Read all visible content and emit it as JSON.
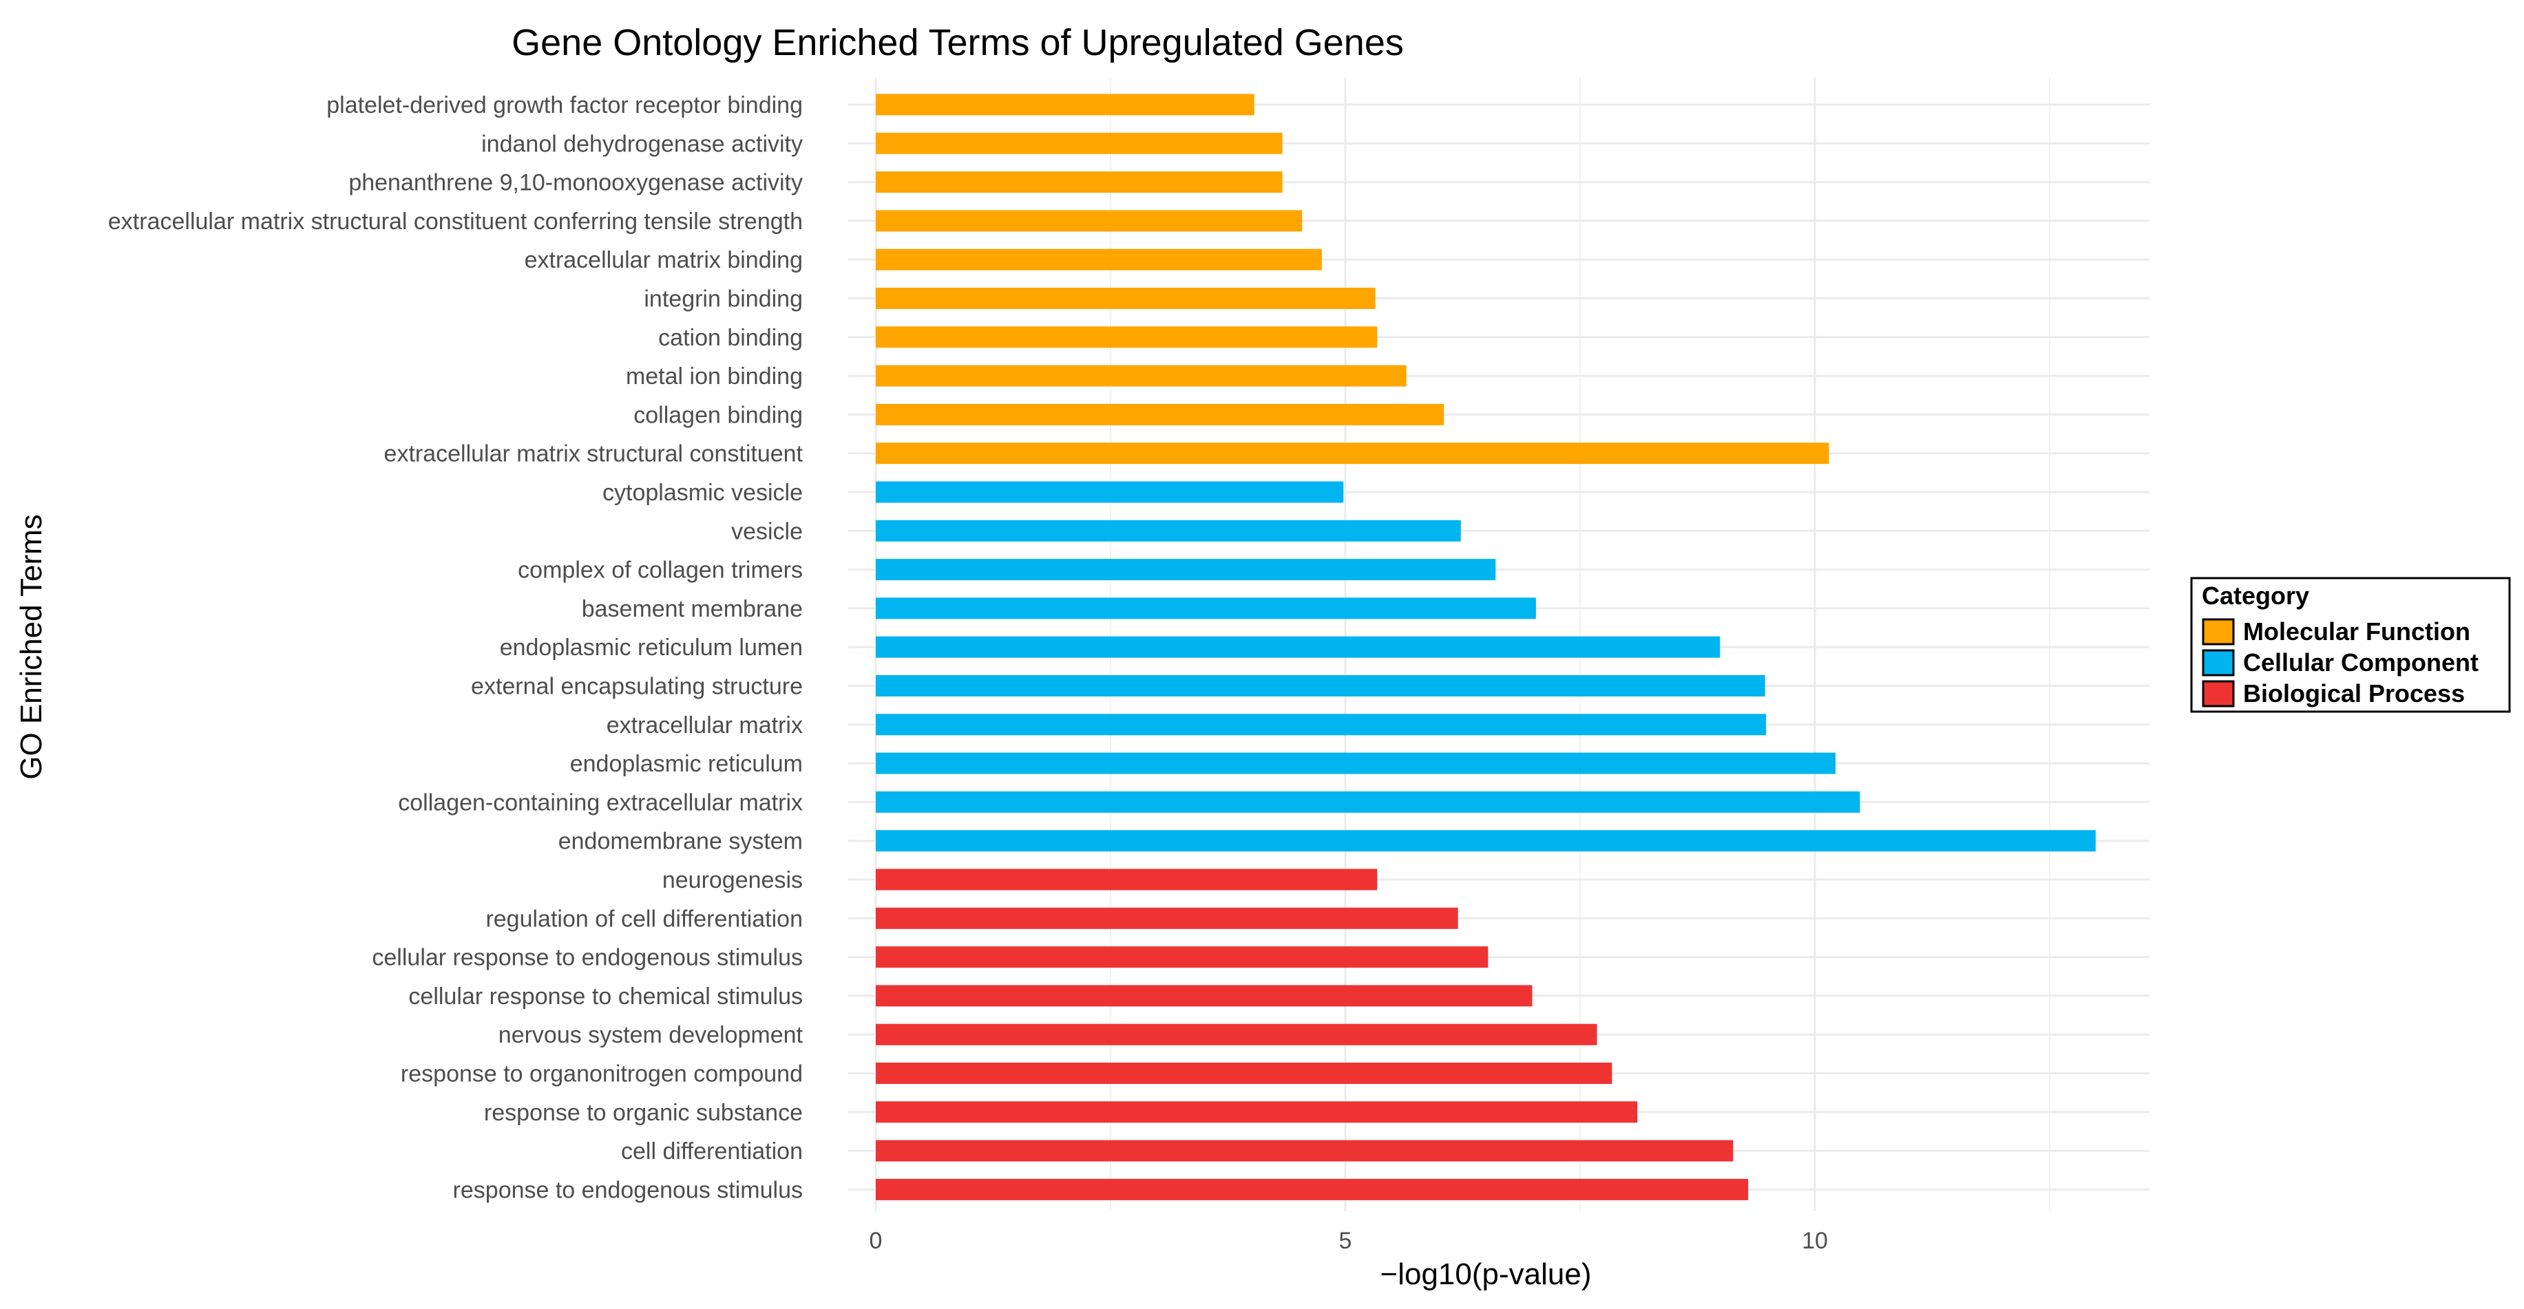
{
  "chart_data": {
    "type": "bar",
    "orientation": "horizontal",
    "title": "Gene Ontology Enriched Terms of Upregulated Genes",
    "xlabel": "−log10(p-value)",
    "ylabel": "GO Enriched Terms",
    "xlim": [
      0,
      13.6
    ],
    "xticks": [
      0,
      5,
      10
    ],
    "xtick_labels": [
      "0",
      "5",
      "10"
    ],
    "grid": true,
    "legend": {
      "title": "Category",
      "placement": "right",
      "entries": [
        {
          "name": "Molecular Function",
          "color": "#FFA500"
        },
        {
          "name": "Cellular Component",
          "color": "#00B4EF"
        },
        {
          "name": "Biological Process",
          "color": "#EE3333"
        }
      ]
    },
    "categories": [
      "platelet-derived growth factor receptor binding",
      "indanol dehydrogenase activity",
      "phenanthrene 9,10-monooxygenase activity",
      "extracellular matrix structural constituent conferring tensile strength",
      "extracellular matrix binding",
      "integrin binding",
      "cation binding",
      "metal ion binding",
      "collagen binding",
      "extracellular matrix structural constituent",
      "cytoplasmic vesicle",
      "vesicle",
      "complex of collagen trimers",
      "basement membrane",
      "endoplasmic reticulum lumen",
      "external encapsulating structure",
      "extracellular matrix",
      "endoplasmic reticulum",
      "collagen-containing extracellular matrix",
      "endomembrane system",
      "neurogenesis",
      "regulation of cell differentiation",
      "cellular response to endogenous stimulus",
      "cellular response to chemical stimulus",
      "nervous system development",
      "response to organonitrogen compound",
      "response to organic substance",
      "cell differentiation",
      "response to endogenous stimulus"
    ],
    "values": [
      4.03,
      4.33,
      4.33,
      4.54,
      4.75,
      5.32,
      5.34,
      5.65,
      6.05,
      10.15,
      4.98,
      6.23,
      6.6,
      7.03,
      8.99,
      9.47,
      9.48,
      10.22,
      10.48,
      12.99,
      5.34,
      6.2,
      6.52,
      6.99,
      7.68,
      7.84,
      8.11,
      9.13,
      9.29
    ],
    "category_group": [
      "Molecular Function",
      "Molecular Function",
      "Molecular Function",
      "Molecular Function",
      "Molecular Function",
      "Molecular Function",
      "Molecular Function",
      "Molecular Function",
      "Molecular Function",
      "Molecular Function",
      "Cellular Component",
      "Cellular Component",
      "Cellular Component",
      "Cellular Component",
      "Cellular Component",
      "Cellular Component",
      "Cellular Component",
      "Cellular Component",
      "Cellular Component",
      "Cellular Component",
      "Biological Process",
      "Biological Process",
      "Biological Process",
      "Biological Process",
      "Biological Process",
      "Biological Process",
      "Biological Process",
      "Biological Process",
      "Biological Process"
    ]
  }
}
